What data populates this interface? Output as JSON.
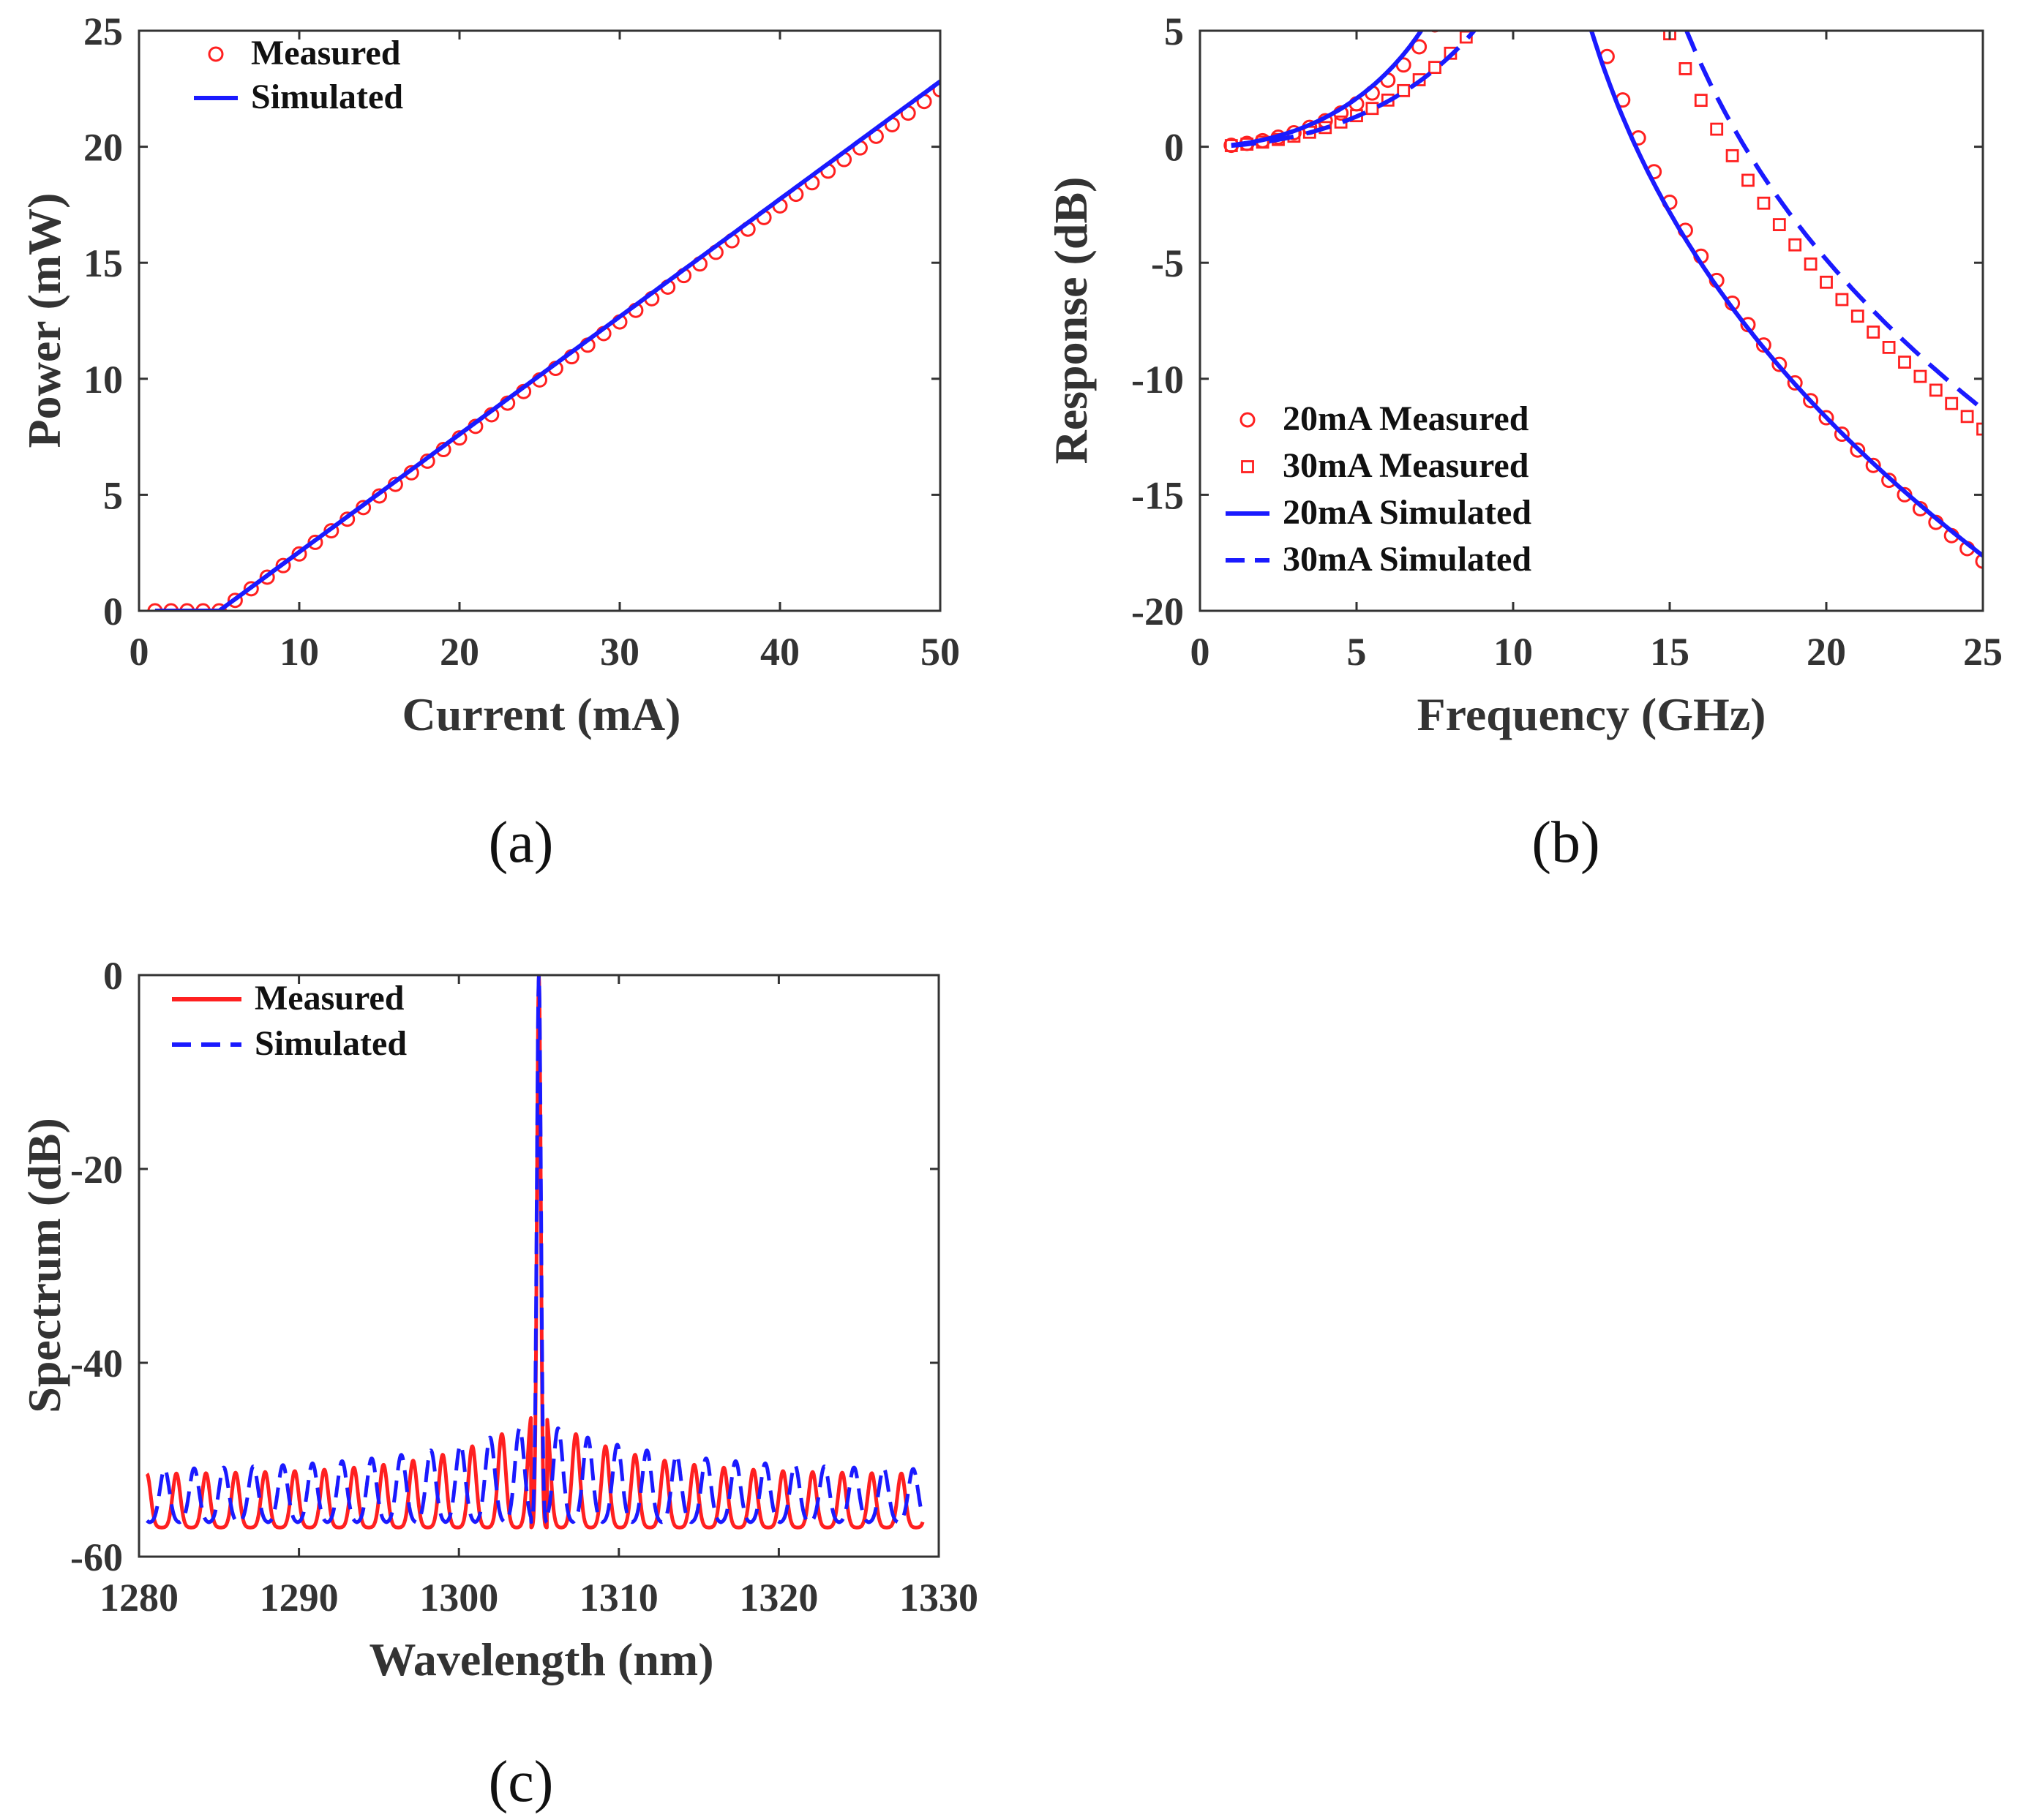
{
  "colors": {
    "red": "#ff2020",
    "blue": "#1a1aff",
    "axis": "#333333"
  },
  "chart_data": [
    {
      "id": "a",
      "type": "line",
      "caption": "(a)",
      "xlabel": "Current (mA)",
      "ylabel": "Power (mW)",
      "xlim": [
        0,
        50
      ],
      "ylim": [
        0,
        25
      ],
      "xticks": [
        0,
        10,
        20,
        30,
        40,
        50
      ],
      "yticks": [
        0,
        5,
        10,
        15,
        20,
        25
      ],
      "legend_position": "top-left",
      "series": [
        {
          "name": "Measured",
          "style": "circles",
          "color": "red",
          "model": {
            "kind": "lowline",
            "th": 5.1,
            "base": 0,
            "slope": 0.5
          },
          "x_start": 1,
          "x_end": 50,
          "x_step": 1
        },
        {
          "name": "Simulated",
          "style": "solid",
          "color": "blue",
          "model": {
            "kind": "lowline",
            "th": 5.0,
            "base": 0,
            "slope": 0.507
          },
          "x_start": 1,
          "x_end": 50,
          "x_step": 0.25
        }
      ]
    },
    {
      "id": "b",
      "type": "line",
      "caption": "(b)",
      "xlabel": "Frequency (GHz)",
      "ylabel": "Response (dB)",
      "xlim": [
        0,
        25
      ],
      "ylim": [
        -20,
        5
      ],
      "xticks": [
        0,
        5,
        10,
        15,
        20,
        25
      ],
      "yticks": [
        -20,
        -15,
        -10,
        -5,
        0,
        5
      ],
      "legend_position": "bottom-left",
      "series": [
        {
          "name": "20mA Measured",
          "style": "circles",
          "color": "red",
          "model": {
            "kind": "relax",
            "fr": 10.6,
            "g": 6.5,
            "fp": 18
          },
          "x_start": 1,
          "x_end": 25,
          "x_step": 0.5
        },
        {
          "name": "30mA Measured",
          "style": "squares",
          "color": "red",
          "model": {
            "kind": "relax",
            "fr": 12.5,
            "g": 16,
            "fp": 28
          },
          "x_start": 1,
          "x_end": 25,
          "x_step": 0.5
        },
        {
          "name": "20mA Simulated",
          "style": "solid",
          "color": "blue",
          "model": {
            "kind": "relax",
            "fr": 10.3,
            "g": 5.3,
            "fp": 21
          },
          "x_start": 1,
          "x_end": 25,
          "x_step": 0.1
        },
        {
          "name": "30mA Simulated",
          "style": "dashed",
          "color": "blue",
          "model": {
            "kind": "relax",
            "fr": 12.8,
            "g": 10.5,
            "fp": 30
          },
          "x_start": 1,
          "x_end": 25,
          "x_step": 0.1
        }
      ]
    },
    {
      "id": "c",
      "type": "line",
      "caption": "(c)",
      "xlabel": "Wavelength (nm)",
      "ylabel": "Spectrum (dB)",
      "xlim": [
        1280,
        1330
      ],
      "ylim": [
        -60,
        0
      ],
      "xticks": [
        1280,
        1290,
        1300,
        1310,
        1320,
        1330
      ],
      "yticks": [
        -60,
        -40,
        -20,
        0
      ],
      "legend_position": "top-left",
      "series": [
        {
          "name": "Measured",
          "style": "solid",
          "color": "red",
          "model": {
            "kind": "spectrum",
            "center": 1305,
            "spacing": 1.85,
            "phase": 0.75,
            "floor": -57,
            "mainw": 0.12,
            "edge": -51.5,
            "spur": -45,
            "decay": 0.09,
            "widthFrac": 0.13
          },
          "x_start": 1280.5,
          "x_end": 1329,
          "x_step": 0.02
        },
        {
          "name": "Simulated",
          "style": "dashed",
          "color": "blue",
          "model": {
            "kind": "spectrum",
            "center": 1305,
            "spacing": 1.85,
            "phase": 0.35,
            "floor": -56.5,
            "mainw": 0.13,
            "edge": -51.2,
            "spur": -46,
            "decay": 0.06,
            "widthFrac": 0.16
          },
          "x_start": 1280.5,
          "x_end": 1329,
          "x_step": 0.02
        }
      ]
    }
  ]
}
